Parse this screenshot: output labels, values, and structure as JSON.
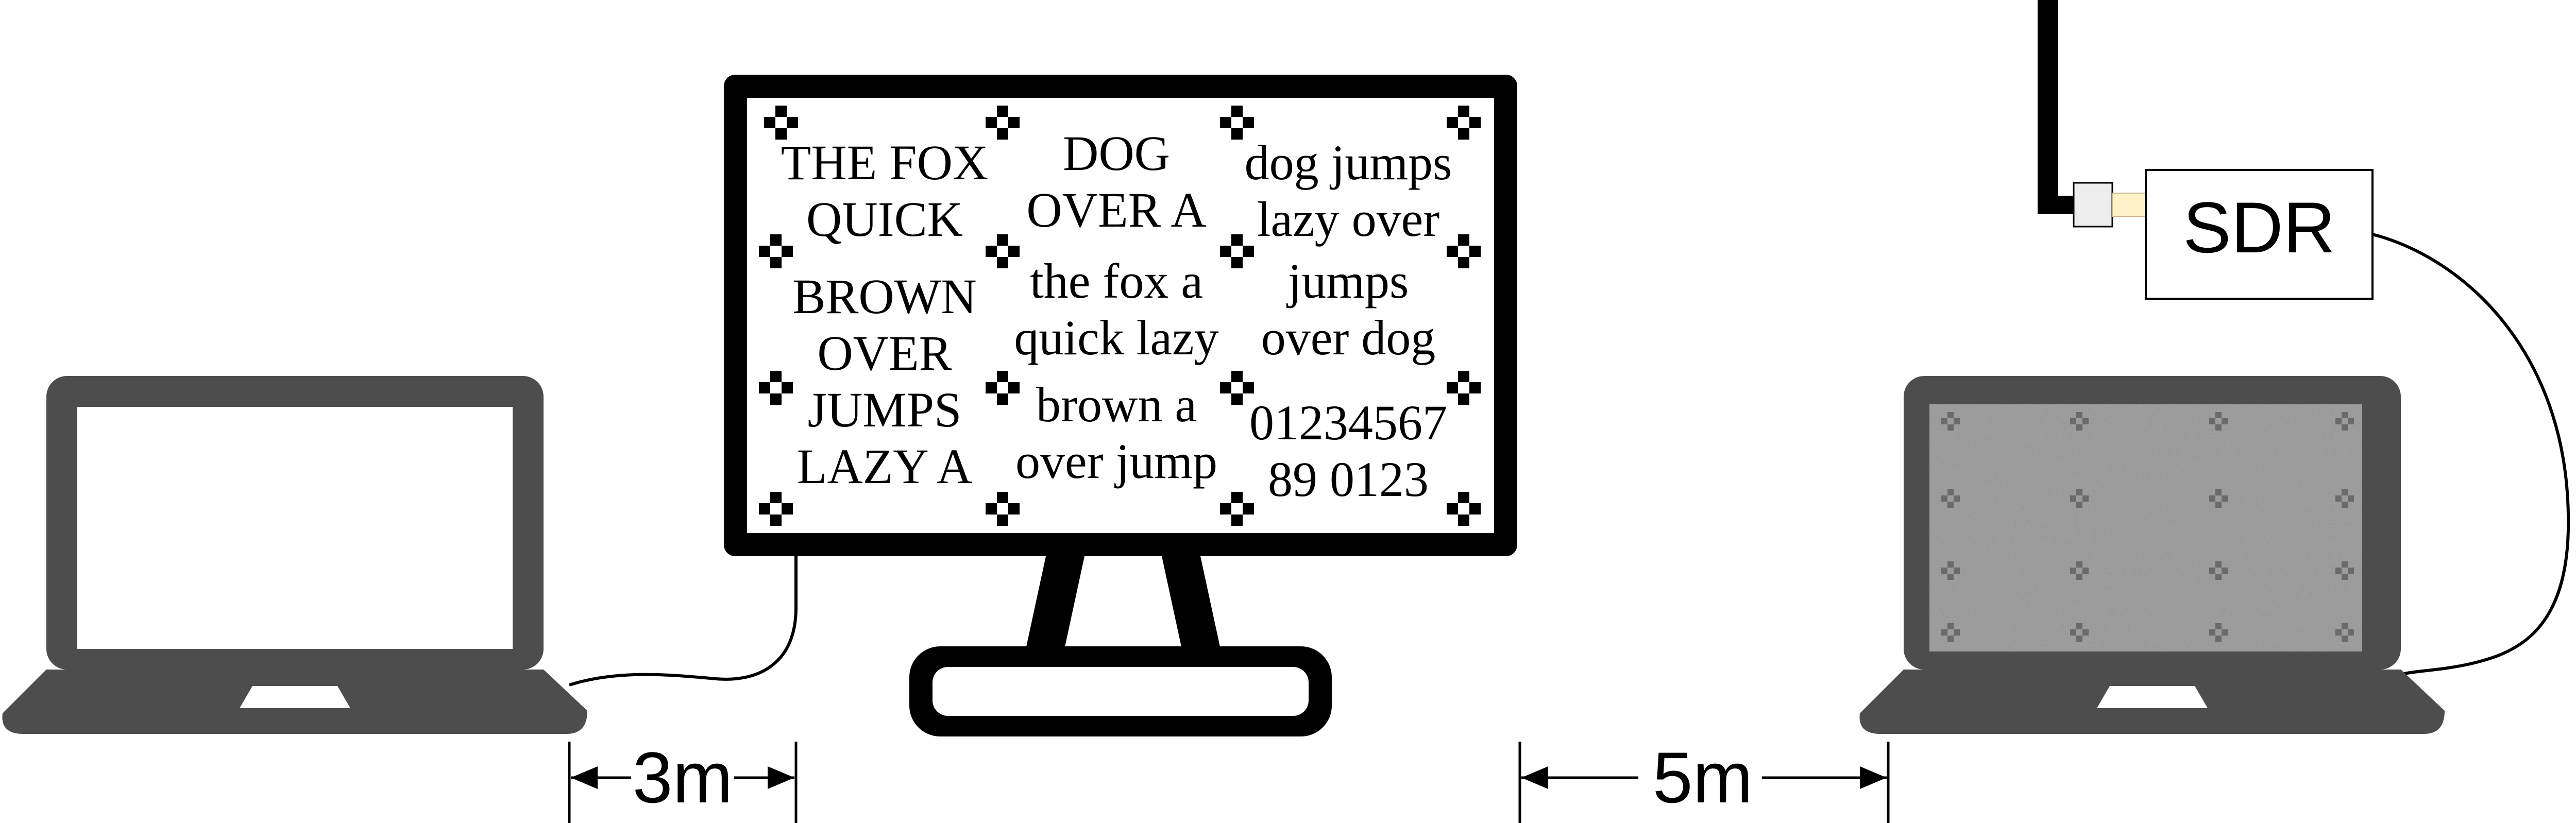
{
  "colors": {
    "laptop": "#4d4d4d",
    "monitor": "#000000",
    "screen": "#ffffff",
    "connector": "#fff2c8",
    "noise_screen": "#9a9a9a"
  },
  "monitor": {
    "columns": [
      [
        "THE FOX",
        "QUICK",
        "BROWN",
        "OVER",
        "JUMPS",
        "LAZY A"
      ],
      [
        "DOG",
        "OVER A",
        "the fox a",
        "quick lazy",
        "brown a",
        "over jump"
      ],
      [
        "dog jumps",
        "lazy over",
        "jumps",
        "over dog",
        "01234567",
        "89 0123"
      ]
    ]
  },
  "sdr": {
    "label": "SDR"
  },
  "distances": {
    "left": "3m",
    "right": "5m"
  },
  "icons": [
    "laptop-icon",
    "monitor-icon",
    "antenna-icon",
    "sdr-box",
    "laptop-icon"
  ]
}
